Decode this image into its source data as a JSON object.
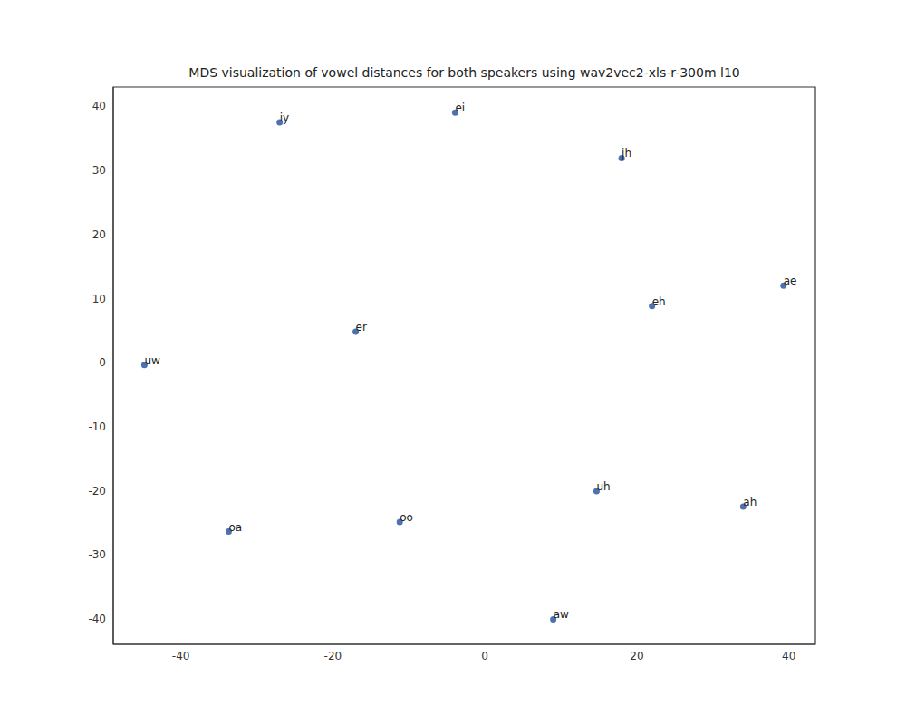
{
  "chart_data": {
    "type": "scatter",
    "title": "MDS visualization of vowel distances for both speakers using wav2vec2-xls-r-300m l10",
    "labels": [
      "iy",
      "ei",
      "jh",
      "ae",
      "eh",
      "er",
      "uw",
      "uh",
      "ah",
      "oo",
      "oa",
      "aw"
    ],
    "x": [
      -27.0,
      -3.9,
      18.0,
      39.3,
      22.0,
      -17.0,
      -44.8,
      14.7,
      34.0,
      -11.2,
      -33.7,
      9.0
    ],
    "y": [
      37.5,
      39.0,
      31.9,
      12.0,
      8.8,
      4.8,
      -0.4,
      -20.1,
      -22.5,
      -24.9,
      -26.4,
      -40.1
    ],
    "color": "#4c72b0",
    "xlim": [
      -48.9,
      43.5
    ],
    "ylim": [
      -44.0,
      43.0
    ],
    "xticks": [
      -40,
      -20,
      0,
      20,
      40
    ],
    "yticks": [
      -40,
      -30,
      -20,
      -10,
      0,
      10,
      20,
      30,
      40
    ],
    "grid": false
  }
}
